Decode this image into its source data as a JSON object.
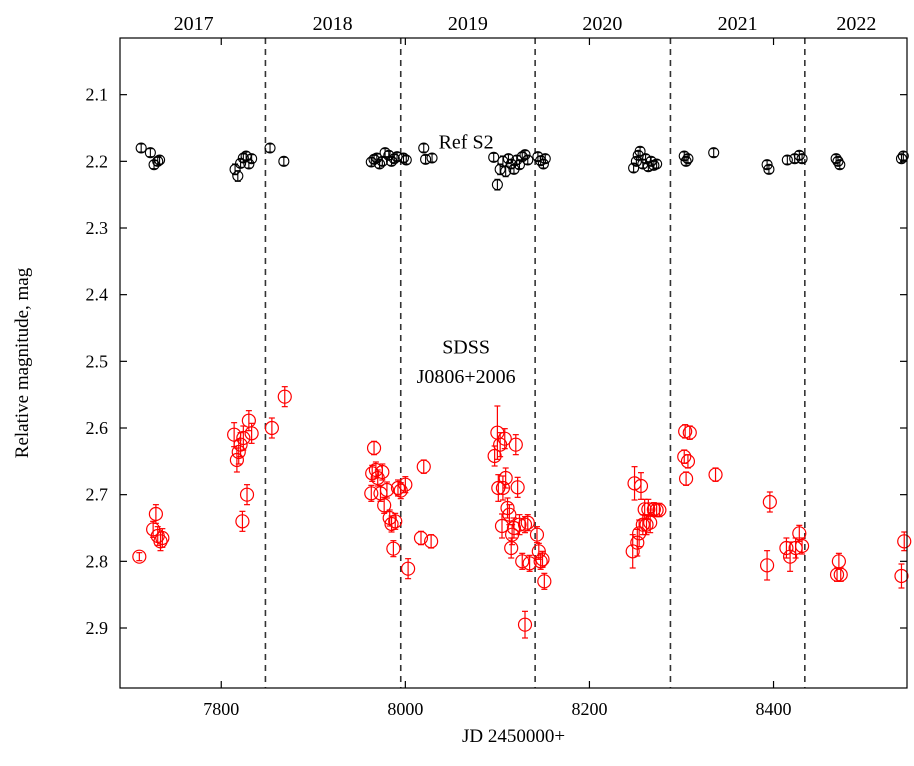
{
  "chart_data": {
    "type": "scatter",
    "xlabel": "JD 2450000+",
    "ylabel": "Relative magnitude, mag",
    "xlim": [
      7690,
      8545
    ],
    "ylim": [
      2.99,
      2.015
    ],
    "y_inverted": true,
    "x_ticks": [
      7800,
      8000,
      8200,
      8400
    ],
    "y_ticks": [
      2.1,
      2.2,
      2.3,
      2.4,
      2.5,
      2.6,
      2.7,
      2.8,
      2.9
    ],
    "y_tick_labels": [
      "2.1",
      "2.2",
      "2.3",
      "2.4",
      "2.5",
      "2.6",
      "2.7",
      "2.8",
      "2.9"
    ],
    "season_boundaries": [
      7848,
      7995,
      8141,
      8288,
      8434
    ],
    "years": [
      {
        "label": "2017",
        "x": 7770
      },
      {
        "label": "2018",
        "x": 7921
      },
      {
        "label": "2019",
        "x": 8068
      },
      {
        "label": "2020",
        "x": 8214
      },
      {
        "label": "2021",
        "x": 8361
      },
      {
        "label": "2022",
        "x": 8490
      }
    ],
    "annotations": [
      {
        "text": "Ref S2",
        "x": 8066,
        "y": 2.17
      },
      {
        "text": "SDSS",
        "x": 8066,
        "y": 2.478
      },
      {
        "text": "J0806+2006",
        "x": 8066,
        "y": 2.522
      }
    ],
    "series": [
      {
        "name": "Ref S2",
        "color": "#000000",
        "marker": "circle-open",
        "points": [
          [
            7713,
            2.18,
            0.006
          ],
          [
            7723,
            2.187,
            0.006
          ],
          [
            7727,
            2.205,
            0.006
          ],
          [
            7731,
            2.2,
            0.006
          ],
          [
            7733,
            2.198,
            0.006
          ],
          [
            7815,
            2.212,
            0.008
          ],
          [
            7818,
            2.222,
            0.008
          ],
          [
            7821,
            2.203,
            0.006
          ],
          [
            7824,
            2.195,
            0.006
          ],
          [
            7827,
            2.192,
            0.006
          ],
          [
            7830,
            2.204,
            0.006
          ],
          [
            7833,
            2.196,
            0.006
          ],
          [
            7853,
            2.18,
            0.006
          ],
          [
            7868,
            2.2,
            0.006
          ],
          [
            7963,
            2.201,
            0.006
          ],
          [
            7966,
            2.197,
            0.006
          ],
          [
            7969,
            2.195,
            0.006
          ],
          [
            7972,
            2.204,
            0.006
          ],
          [
            7975,
            2.2,
            0.006
          ],
          [
            7978,
            2.187,
            0.006
          ],
          [
            7982,
            2.191,
            0.006
          ],
          [
            7985,
            2.2,
            0.006
          ],
          [
            7988,
            2.196,
            0.006
          ],
          [
            7991,
            2.193,
            0.006
          ],
          [
            7998,
            2.195,
            0.006
          ],
          [
            8001,
            2.198,
            0.006
          ],
          [
            8020,
            2.18,
            0.006
          ],
          [
            8022,
            2.197,
            0.006
          ],
          [
            8029,
            2.195,
            0.006
          ],
          [
            8096,
            2.194,
            0.006
          ],
          [
            8100,
            2.235,
            0.008
          ],
          [
            8103,
            2.212,
            0.008
          ],
          [
            8106,
            2.2,
            0.008
          ],
          [
            8109,
            2.215,
            0.008
          ],
          [
            8112,
            2.196,
            0.006
          ],
          [
            8115,
            2.204,
            0.006
          ],
          [
            8118,
            2.212,
            0.006
          ],
          [
            8121,
            2.198,
            0.006
          ],
          [
            8124,
            2.205,
            0.006
          ],
          [
            8127,
            2.193,
            0.006
          ],
          [
            8130,
            2.19,
            0.006
          ],
          [
            8133,
            2.198,
            0.006
          ],
          [
            8144,
            2.193,
            0.006
          ],
          [
            8147,
            2.199,
            0.006
          ],
          [
            8150,
            2.204,
            0.006
          ],
          [
            8152,
            2.196,
            0.006
          ],
          [
            8248,
            2.21,
            0.006
          ],
          [
            8251,
            2.2,
            0.006
          ],
          [
            8253,
            2.191,
            0.006
          ],
          [
            8255,
            2.185,
            0.006
          ],
          [
            8258,
            2.204,
            0.006
          ],
          [
            8261,
            2.196,
            0.006
          ],
          [
            8264,
            2.208,
            0.006
          ],
          [
            8267,
            2.2,
            0.006
          ],
          [
            8270,
            2.206,
            0.006
          ],
          [
            8273,
            2.204,
            0.006
          ],
          [
            8303,
            2.192,
            0.006
          ],
          [
            8305,
            2.2,
            0.006
          ],
          [
            8307,
            2.196,
            0.006
          ],
          [
            8335,
            2.187,
            0.006
          ],
          [
            8393,
            2.205,
            0.006
          ],
          [
            8395,
            2.212,
            0.006
          ],
          [
            8415,
            2.198,
            0.006
          ],
          [
            8423,
            2.196,
            0.006
          ],
          [
            8428,
            2.191,
            0.006
          ],
          [
            8431,
            2.196,
            0.006
          ],
          [
            8468,
            2.196,
            0.006
          ],
          [
            8470,
            2.2,
            0.006
          ],
          [
            8472,
            2.205,
            0.006
          ],
          [
            8539,
            2.196,
            0.006
          ],
          [
            8541,
            2.192,
            0.006
          ]
        ]
      },
      {
        "name": "SDSS J0806+2006",
        "color": "#ff0000",
        "marker": "circle-open",
        "points": [
          [
            7711,
            2.793,
            0.006
          ],
          [
            7726,
            2.752,
            0.012
          ],
          [
            7729,
            2.729,
            0.014
          ],
          [
            7731,
            2.762,
            0.014
          ],
          [
            7734,
            2.77,
            0.014
          ],
          [
            7736,
            2.765,
            0.014
          ],
          [
            7814,
            2.61,
            0.018
          ],
          [
            7817,
            2.648,
            0.018
          ],
          [
            7819,
            2.636,
            0.018
          ],
          [
            7821,
            2.625,
            0.018
          ],
          [
            7824,
            2.615,
            0.018
          ],
          [
            7823,
            2.74,
            0.015
          ],
          [
            7828,
            2.7,
            0.015
          ],
          [
            7830,
            2.589,
            0.015
          ],
          [
            7833,
            2.608,
            0.015
          ],
          [
            7855,
            2.6,
            0.015
          ],
          [
            7869,
            2.553,
            0.015
          ],
          [
            7963,
            2.698,
            0.012
          ],
          [
            7964,
            2.668,
            0.012
          ],
          [
            7966,
            2.63,
            0.01
          ],
          [
            7968,
            2.663,
            0.012
          ],
          [
            7970,
            2.675,
            0.012
          ],
          [
            7973,
            2.698,
            0.012
          ],
          [
            7975,
            2.666,
            0.012
          ],
          [
            7977,
            2.716,
            0.012
          ],
          [
            7980,
            2.693,
            0.012
          ],
          [
            7983,
            2.735,
            0.012
          ],
          [
            7985,
            2.744,
            0.012
          ],
          [
            7987,
            2.781,
            0.012
          ],
          [
            7989,
            2.74,
            0.012
          ],
          [
            7992,
            2.69,
            0.012
          ],
          [
            7995,
            2.694,
            0.012
          ],
          [
            8000,
            2.685,
            0.012
          ],
          [
            8003,
            2.811,
            0.015
          ],
          [
            8017,
            2.765,
            0.01
          ],
          [
            8020,
            2.658,
            0.01
          ],
          [
            8028,
            2.77,
            0.01
          ],
          [
            8097,
            2.642,
            0.015
          ],
          [
            8100,
            2.607,
            0.04
          ],
          [
            8101,
            2.69,
            0.02
          ],
          [
            8103,
            2.625,
            0.018
          ],
          [
            8105,
            2.747,
            0.018
          ],
          [
            8106,
            2.69,
            0.018
          ],
          [
            8108,
            2.616,
            0.015
          ],
          [
            8109,
            2.675,
            0.015
          ],
          [
            8111,
            2.72,
            0.015
          ],
          [
            8113,
            2.73,
            0.015
          ],
          [
            8115,
            2.78,
            0.015
          ],
          [
            8116,
            2.76,
            0.015
          ],
          [
            8118,
            2.75,
            0.015
          ],
          [
            8120,
            2.625,
            0.015
          ],
          [
            8122,
            2.689,
            0.015
          ],
          [
            8124,
            2.745,
            0.015
          ],
          [
            8127,
            2.8,
            0.012
          ],
          [
            8130,
            2.745,
            0.012
          ],
          [
            8133,
            2.742,
            0.012
          ],
          [
            8135,
            2.803,
            0.012
          ],
          [
            8130,
            2.895,
            0.02
          ],
          [
            8143,
            2.76,
            0.012
          ],
          [
            8145,
            2.785,
            0.012
          ],
          [
            8147,
            2.8,
            0.012
          ],
          [
            8149,
            2.797,
            0.012
          ],
          [
            8151,
            2.83,
            0.012
          ],
          [
            8247,
            2.785,
            0.025
          ],
          [
            8249,
            2.683,
            0.025
          ],
          [
            8252,
            2.772,
            0.02
          ],
          [
            8254,
            2.758,
            0.02
          ],
          [
            8256,
            2.687,
            0.02
          ],
          [
            8258,
            2.745,
            0.015
          ],
          [
            8260,
            2.722,
            0.015
          ],
          [
            8262,
            2.745,
            0.015
          ],
          [
            8264,
            2.722,
            0.015
          ],
          [
            8266,
            2.742,
            0.015
          ],
          [
            8270,
            2.722,
            0.01
          ],
          [
            8273,
            2.723,
            0.01
          ],
          [
            8276,
            2.723,
            0.01
          ],
          [
            8303,
            2.643,
            0.01
          ],
          [
            8304,
            2.605,
            0.01
          ],
          [
            8305,
            2.676,
            0.01
          ],
          [
            8307,
            2.65,
            0.01
          ],
          [
            8309,
            2.607,
            0.01
          ],
          [
            8337,
            2.67,
            0.01
          ],
          [
            8393,
            2.806,
            0.022
          ],
          [
            8396,
            2.711,
            0.015
          ],
          [
            8414,
            2.78,
            0.015
          ],
          [
            8418,
            2.793,
            0.022
          ],
          [
            8424,
            2.78,
            0.015
          ],
          [
            8428,
            2.758,
            0.012
          ],
          [
            8431,
            2.777,
            0.012
          ],
          [
            8469,
            2.82,
            0.01
          ],
          [
            8471,
            2.8,
            0.012
          ],
          [
            8473,
            2.82,
            0.01
          ],
          [
            8539,
            2.822,
            0.018
          ],
          [
            8542,
            2.77,
            0.014
          ]
        ]
      }
    ]
  }
}
